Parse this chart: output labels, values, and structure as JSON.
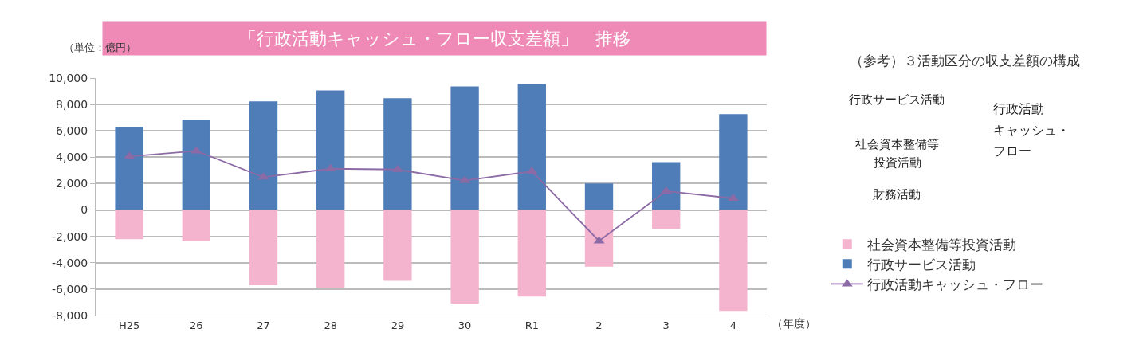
{
  "chart_data": {
    "type": "bar",
    "title": "「行政活動キャッシュ・フロー収支差額」　推移",
    "ylabel": "（単位：億円）",
    "xlabel": "（年度）",
    "categories": [
      "H25",
      "26",
      "27",
      "28",
      "29",
      "30",
      "R1",
      "2",
      "3",
      "4"
    ],
    "stacked": true,
    "series": [
      {
        "name": "社会資本整備等投資活動",
        "color": "#f4b4ce",
        "values": [
          -2210,
          -2350,
          -5700,
          -5880,
          -5380,
          -7090,
          -6570,
          -4300,
          -1430,
          -7650
        ]
      },
      {
        "name": "行政サービス活動",
        "color": "#4f7db8",
        "values": [
          6300,
          6850,
          8230,
          9060,
          8470,
          9360,
          9540,
          2010,
          3620,
          7270
        ]
      },
      {
        "name": "行政活動キャッシュ・フロー",
        "type": "line",
        "color": "#8b6aa5",
        "marker": "triangle",
        "values": [
          4060,
          4480,
          2490,
          3130,
          3070,
          2230,
          2930,
          -2350,
          1430,
          880
        ]
      }
    ],
    "ylim": [
      -8000,
      10000
    ],
    "yticks": [
      {
        "value": -8000,
        "label": "-8,000"
      },
      {
        "value": -6000,
        "label": "-6,000"
      },
      {
        "value": -4000,
        "label": "-4,000"
      },
      {
        "value": -2000,
        "label": "-2,000"
      },
      0,
      {
        "value": 2000,
        "label": "2,000"
      },
      {
        "value": 4000,
        "label": "4,000"
      },
      {
        "value": 6000,
        "label": "6,000"
      },
      {
        "value": 8000,
        "label": "8,000"
      },
      {
        "value": 10000,
        "label": "10,000"
      }
    ],
    "grid": "y",
    "legend": "right",
    "annotations": [
      "（参考）３活動区分の収支差額の構成",
      "行政サービス活動",
      "社会資本整備等",
      "投資活動",
      "財務活動",
      "行政活動",
      "キャッシュ・",
      "フロー"
    ]
  }
}
